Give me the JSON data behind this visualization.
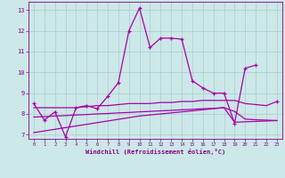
{
  "x": [
    0,
    1,
    2,
    3,
    4,
    5,
    6,
    7,
    8,
    9,
    10,
    11,
    12,
    13,
    14,
    15,
    16,
    17,
    18,
    19,
    20,
    21,
    22,
    23
  ],
  "y_main": [
    8.5,
    7.7,
    8.1,
    6.9,
    8.3,
    8.4,
    8.25,
    8.85,
    9.5,
    12.0,
    13.1,
    11.2,
    11.65,
    11.65,
    11.6,
    9.6,
    9.25,
    9.0,
    9.0,
    7.55,
    10.2,
    10.35,
    null,
    8.6
  ],
  "y_line2": [
    8.3,
    8.3,
    8.3,
    8.3,
    8.3,
    8.35,
    8.4,
    8.4,
    8.45,
    8.5,
    8.5,
    8.5,
    8.55,
    8.55,
    8.6,
    8.6,
    8.65,
    8.65,
    8.65,
    8.65,
    8.5,
    8.45,
    8.4,
    8.6
  ],
  "y_line3": [
    7.85,
    7.87,
    7.9,
    7.92,
    7.95,
    7.97,
    8.0,
    8.02,
    8.05,
    8.07,
    8.1,
    8.12,
    8.15,
    8.17,
    8.2,
    8.22,
    8.25,
    8.27,
    8.3,
    8.12,
    7.75,
    7.72,
    7.7,
    7.68
  ],
  "y_line4": [
    7.1,
    7.18,
    7.26,
    7.34,
    7.42,
    7.5,
    7.58,
    7.66,
    7.74,
    7.82,
    7.9,
    7.95,
    8.0,
    8.05,
    8.1,
    8.15,
    8.2,
    8.25,
    8.3,
    7.6,
    7.62,
    7.64,
    7.66,
    7.68
  ],
  "line_color": "#aa00aa",
  "bg_color": "#cce8e8",
  "grid_color": "#aacccc",
  "xlabel": "Windchill (Refroidissement éolien,°C)",
  "yticks": [
    7,
    8,
    9,
    10,
    11,
    12,
    13
  ],
  "xticks": [
    0,
    1,
    2,
    3,
    4,
    5,
    6,
    7,
    8,
    9,
    10,
    11,
    12,
    13,
    14,
    15,
    16,
    17,
    18,
    19,
    20,
    21,
    22,
    23
  ],
  "ylim": [
    6.8,
    13.4
  ],
  "xlim": [
    -0.5,
    23.5
  ]
}
